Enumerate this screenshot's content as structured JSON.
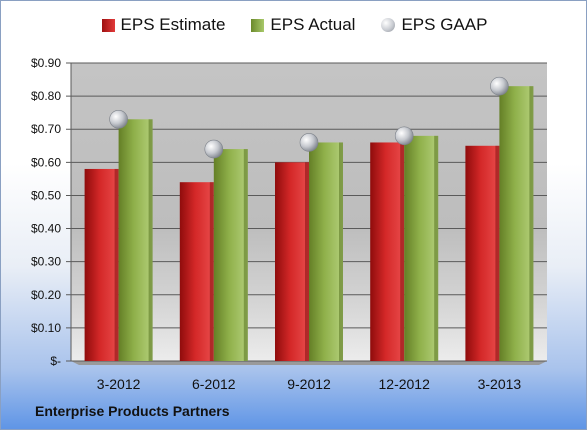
{
  "company_label": "Enterprise Products Partners",
  "colors": {
    "estimate": "#c81e1e",
    "actual": "#8fb04a",
    "gaap": "#b8bcc4"
  },
  "chart_data": {
    "type": "bar",
    "title": "",
    "xlabel": "",
    "ylabel": "",
    "categories": [
      "3-2012",
      "6-2012",
      "9-2012",
      "12-2012",
      "3-2013"
    ],
    "series": [
      {
        "name": "EPS Estimate",
        "type": "bar",
        "values": [
          0.58,
          0.54,
          0.6,
          0.66,
          0.65
        ]
      },
      {
        "name": "EPS Actual",
        "type": "bar",
        "values": [
          0.73,
          0.64,
          0.66,
          0.68,
          0.83
        ]
      },
      {
        "name": "EPS GAAP",
        "type": "scatter",
        "values": [
          0.73,
          0.64,
          0.66,
          0.68,
          0.83
        ]
      }
    ],
    "ylim": [
      0,
      0.9
    ],
    "yticks": [
      0,
      0.1,
      0.2,
      0.3,
      0.4,
      0.5,
      0.6,
      0.7,
      0.8,
      0.9
    ],
    "ytick_labels": [
      "$-",
      "$0.10",
      "$0.20",
      "$0.30",
      "$0.40",
      "$0.50",
      "$0.60",
      "$0.70",
      "$0.80",
      "$0.90"
    ],
    "grid": true,
    "legend": "top"
  }
}
